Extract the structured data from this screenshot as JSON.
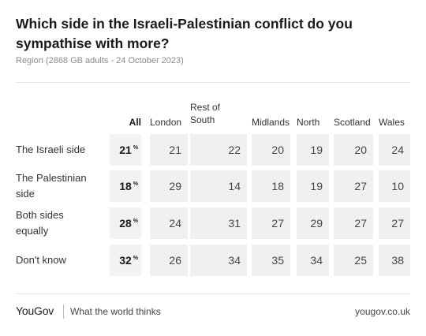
{
  "header": {
    "title": "Which side in the Israeli-Palestinian conflict do you sympathise with more?",
    "subtitle": "Region (2868 GB adults - 24 October 2023)"
  },
  "footer": {
    "brand": "YouGov",
    "tagline": "What the world thinks",
    "url": "yougov.co.uk"
  },
  "chart_data": {
    "type": "table",
    "title": "Which side in the Israeli-Palestinian conflict do you sympathise with more?",
    "subtitle": "Region (2868 GB adults - 24 October 2023)",
    "unit": "%",
    "columns": [
      "All",
      "London",
      "Rest of South",
      "Midlands",
      "North",
      "Scotland",
      "Wales"
    ],
    "rows": [
      {
        "label": "The Israeli side",
        "values": [
          21,
          21,
          22,
          20,
          19,
          20,
          24
        ]
      },
      {
        "label": "The Palestinian side",
        "values": [
          18,
          29,
          14,
          18,
          19,
          27,
          10
        ]
      },
      {
        "label": "Both sides equally",
        "values": [
          28,
          24,
          31,
          27,
          29,
          27,
          27
        ]
      },
      {
        "label": "Don't know",
        "values": [
          32,
          26,
          34,
          35,
          34,
          25,
          38
        ]
      }
    ]
  }
}
